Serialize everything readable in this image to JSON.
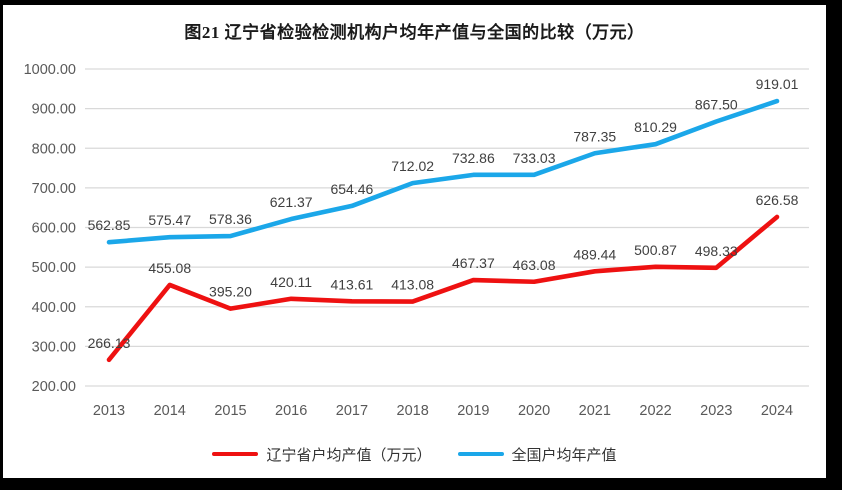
{
  "chart_data": {
    "type": "line",
    "title": "图21 辽宁省检验检测机构户均年产值与全国的比较（万元）",
    "categories": [
      "2013",
      "2014",
      "2015",
      "2016",
      "2017",
      "2018",
      "2019",
      "2020",
      "2021",
      "2022",
      "2023",
      "2024"
    ],
    "series": [
      {
        "name": "辽宁省户均产值（万元）",
        "color": "#ee1111",
        "values": [
          266.13,
          455.08,
          395.2,
          420.11,
          413.61,
          413.08,
          467.37,
          463.08,
          489.44,
          500.87,
          498.33,
          626.58
        ]
      },
      {
        "name": "全国户均年产值",
        "color": "#1ba7e9",
        "values": [
          562.85,
          575.47,
          578.36,
          621.37,
          654.46,
          712.02,
          732.86,
          733.03,
          787.35,
          810.29,
          867.5,
          919.01
        ]
      }
    ],
    "xlabel": "",
    "ylabel": "",
    "ylim": [
      200,
      1000
    ],
    "ytick_step": 100,
    "ytick_decimals": 2,
    "data_label_decimals": 2,
    "grid": "horizontal-only",
    "gridline_color": "#d9d9d9",
    "axis_label_color": "#595959",
    "data_label_color": "#404040",
    "legend_position": "bottom",
    "frame_color": "#000000",
    "background_color": "#ffffff"
  }
}
